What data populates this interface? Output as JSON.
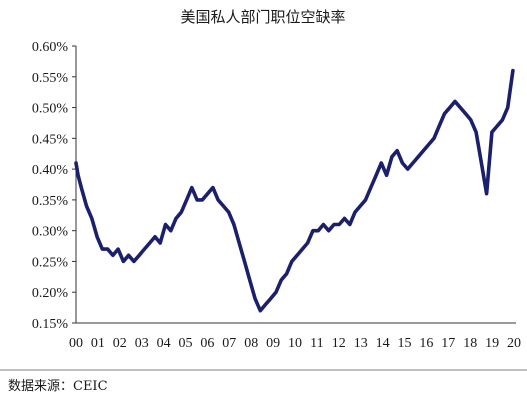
{
  "chart_data": {
    "type": "line",
    "title": "美国私人部门职位空缺率",
    "xlabel": "",
    "ylabel": "",
    "ylim": [
      0.15,
      0.6
    ],
    "xlim": [
      2000.0,
      2020.8
    ],
    "grid": false,
    "legend": "none",
    "y_tick_values": [
      0.15,
      0.2,
      0.25,
      0.3,
      0.35,
      0.4,
      0.45,
      0.5,
      0.55,
      0.6
    ],
    "y_tick_labels": [
      "0.15%",
      "0.20%",
      "0.25%",
      "0.30%",
      "0.35%",
      "0.40%",
      "0.45%",
      "0.50%",
      "0.55%",
      "0.60%"
    ],
    "x_tick_labels": [
      "00",
      "01",
      "02",
      "03",
      "04",
      "05",
      "06",
      "07",
      "08",
      "09",
      "10",
      "11",
      "12",
      "13",
      "14",
      "15",
      "16",
      "17",
      "18",
      "19",
      "20"
    ],
    "series": [
      {
        "color": "#1c1f6b",
        "x": [
          2000.0,
          2000.1,
          2000.25,
          2000.5,
          2000.75,
          2001.0,
          2001.25,
          2001.5,
          2001.75,
          2002.0,
          2002.25,
          2002.5,
          2002.75,
          2003.0,
          2003.25,
          2003.5,
          2003.75,
          2004.0,
          2004.25,
          2004.5,
          2004.75,
          2005.0,
          2005.25,
          2005.5,
          2005.75,
          2006.0,
          2006.25,
          2006.5,
          2006.75,
          2007.0,
          2007.25,
          2007.5,
          2007.75,
          2008.0,
          2008.25,
          2008.5,
          2008.75,
          2009.0,
          2009.25,
          2009.5,
          2009.75,
          2010.0,
          2010.25,
          2010.5,
          2010.75,
          2011.0,
          2011.25,
          2011.5,
          2011.75,
          2012.0,
          2012.25,
          2012.5,
          2012.75,
          2013.0,
          2013.25,
          2013.5,
          2013.75,
          2014.0,
          2014.25,
          2014.5,
          2014.75,
          2015.0,
          2015.25,
          2015.5,
          2015.75,
          2016.0,
          2016.25,
          2016.5,
          2016.75,
          2017.0,
          2017.25,
          2017.5,
          2017.75,
          2018.0,
          2018.25,
          2018.5,
          2018.75,
          2019.0,
          2019.25,
          2019.5,
          2019.75,
          2020.0,
          2020.25,
          2020.5,
          2020.75
        ],
        "values": [
          0.41,
          0.39,
          0.37,
          0.34,
          0.32,
          0.29,
          0.27,
          0.27,
          0.26,
          0.27,
          0.25,
          0.26,
          0.25,
          0.26,
          0.27,
          0.28,
          0.29,
          0.28,
          0.31,
          0.3,
          0.32,
          0.33,
          0.35,
          0.37,
          0.35,
          0.35,
          0.36,
          0.37,
          0.35,
          0.34,
          0.33,
          0.31,
          0.28,
          0.25,
          0.22,
          0.19,
          0.17,
          0.18,
          0.19,
          0.2,
          0.22,
          0.23,
          0.25,
          0.26,
          0.27,
          0.28,
          0.3,
          0.3,
          0.31,
          0.3,
          0.31,
          0.31,
          0.32,
          0.31,
          0.33,
          0.34,
          0.35,
          0.37,
          0.39,
          0.41,
          0.39,
          0.42,
          0.43,
          0.41,
          0.4,
          0.41,
          0.42,
          0.43,
          0.44,
          0.45,
          0.47,
          0.49,
          0.5,
          0.51,
          0.5,
          0.49,
          0.48,
          0.46,
          0.41,
          0.36,
          0.46,
          0.47,
          0.48,
          0.5,
          0.56
        ]
      }
    ]
  },
  "source_note": "数据来源：CEIC"
}
